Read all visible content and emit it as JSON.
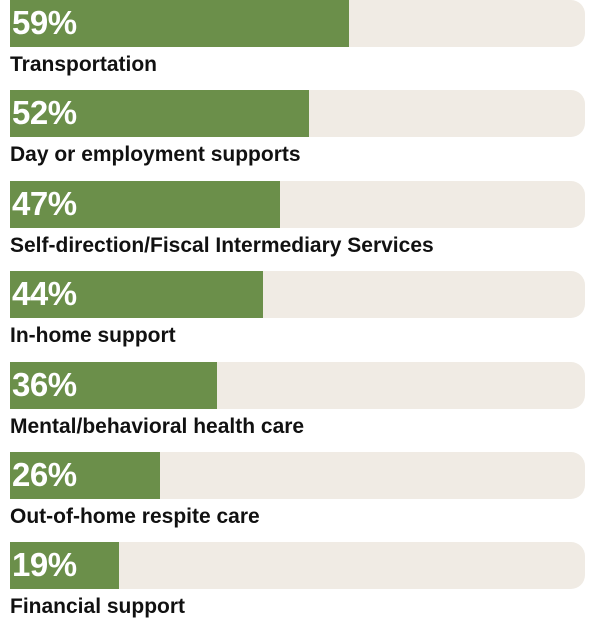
{
  "chart_data": {
    "type": "bar",
    "orientation": "horizontal",
    "categories": [
      "Transportation",
      "Day or employment supports",
      "Self-direction/Fiscal Intermediary Services",
      "In-home support",
      "Mental/behavioral health care",
      "Out-of-home respite care",
      "Financial support"
    ],
    "values": [
      59,
      52,
      47,
      44,
      36,
      26,
      19
    ],
    "value_labels": [
      "59%",
      "52%",
      "47%",
      "44%",
      "36%",
      "26%",
      "19%"
    ],
    "xlim": [
      0,
      100
    ],
    "grid": false,
    "legend": "none"
  },
  "colors": {
    "bar": "#6b8f4a",
    "track": "#f0ebe4",
    "label": "#111111",
    "value_text": "#ffffff"
  }
}
